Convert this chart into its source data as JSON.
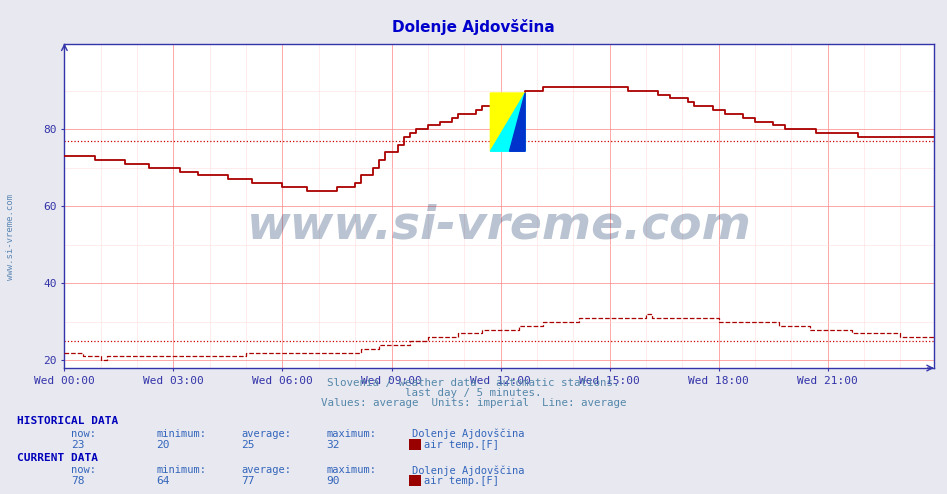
{
  "title": "Dolenje Ajdovščina",
  "title_color": "#0000cc",
  "bg_color": "#e8e8f0",
  "plot_bg_color": "#ffffff",
  "xlabel_times": [
    "Wed 00:00",
    "Wed 03:00",
    "Wed 06:00",
    "Wed 09:00",
    "Wed 12:00",
    "Wed 15:00",
    "Wed 18:00",
    "Wed 21:00"
  ],
  "ylim": [
    18,
    102
  ],
  "xlim": [
    0,
    287
  ],
  "grid_color_major": "#ff9999",
  "grid_color_minor": "#ffdddd",
  "line_color": "#aa0000",
  "line_color2": "#880000",
  "avg_color": "#cc0000",
  "watermark_text": "www.si-vreme.com",
  "watermark_color": "#1a3a6a",
  "watermark_alpha": 0.3,
  "sub_text1": "Slovenia / weather data - automatic stations.",
  "sub_text2": "last day / 5 minutes.",
  "sub_text3": "Values: average  Units: imperial  Line: average",
  "sub_text_color": "#5588aa",
  "hist_label": "HISTORICAL DATA",
  "curr_label": "CURRENT DATA",
  "table_color": "#0000bb",
  "hist_now": 23,
  "hist_min": 20,
  "hist_avg": 25,
  "hist_max": 32,
  "curr_now": 78,
  "curr_min": 64,
  "curr_avg": 77,
  "curr_max": 90,
  "station_name": "Dolenje Ajdovščina",
  "measure_label": "air temp.[F]",
  "dot_avg_historical": 25,
  "dot_avg_current": 77,
  "axis_color": "#3333aa",
  "tick_color": "#3333aa",
  "left_label": "www.si-vreme.com",
  "left_label_color": "#4477aa",
  "n_points": 288
}
